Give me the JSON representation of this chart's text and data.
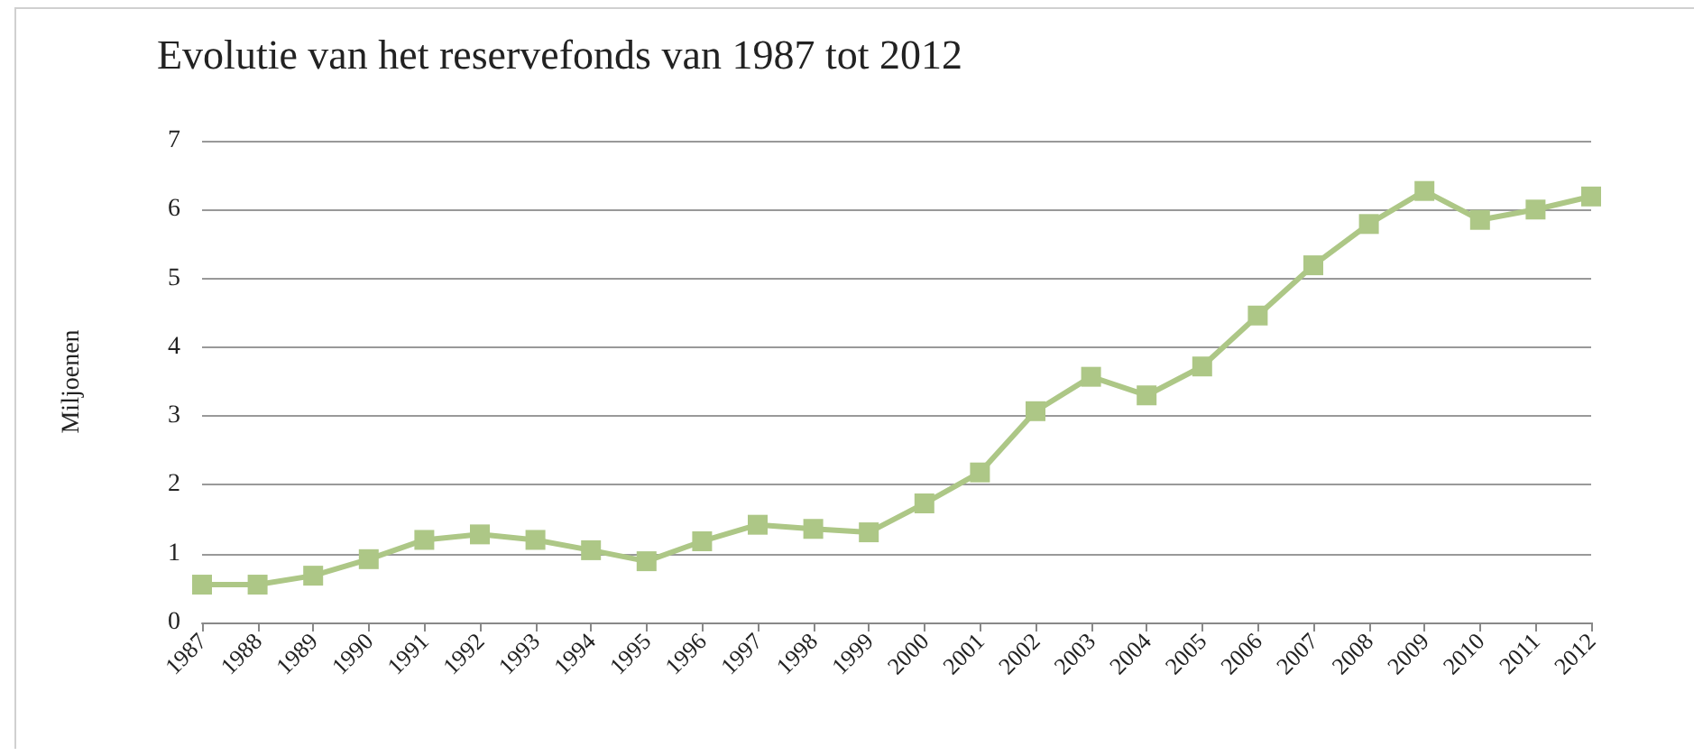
{
  "chart_data": {
    "type": "line",
    "title": "Evolutie van het reservefonds van 1987 tot 2012",
    "ylabel": "Miljoenen",
    "categories": [
      "1987",
      "1988",
      "1989",
      "1990",
      "1991",
      "1992",
      "1993",
      "1994",
      "1995",
      "1996",
      "1997",
      "1998",
      "1999",
      "2000",
      "2001",
      "2002",
      "2003",
      "2004",
      "2005",
      "2006",
      "2007",
      "2008",
      "2009",
      "2010",
      "2011",
      "2012"
    ],
    "series": [
      {
        "color": "#adc786",
        "values": [
          0.55,
          0.55,
          0.68,
          0.92,
          1.2,
          1.28,
          1.2,
          1.05,
          0.89,
          1.18,
          1.42,
          1.36,
          1.31,
          1.73,
          2.18,
          3.07,
          3.57,
          3.3,
          3.72,
          4.46,
          5.19,
          5.79,
          6.27,
          5.85,
          6.0,
          6.19
        ]
      }
    ],
    "ylim": [
      0,
      7
    ],
    "yticks": [
      0,
      1,
      2,
      3,
      4,
      5,
      6,
      7
    ],
    "grid": "y",
    "marker": "square",
    "line_style": "solid"
  }
}
